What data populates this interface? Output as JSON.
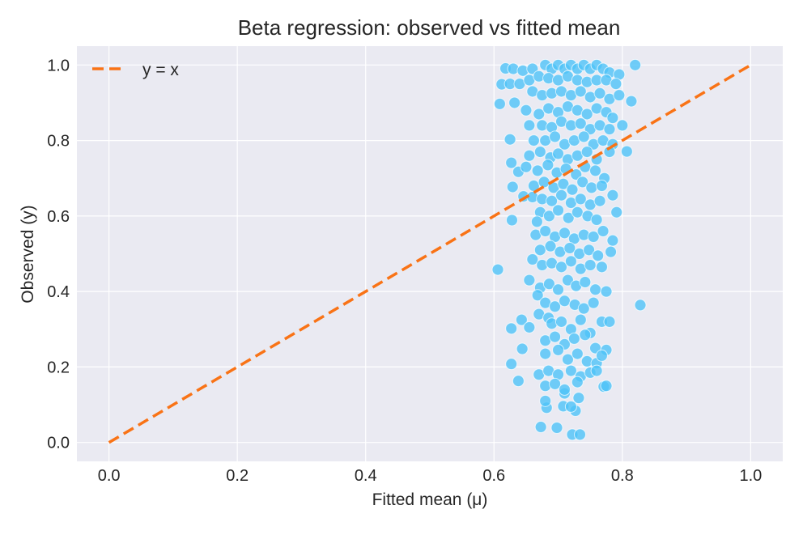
{
  "chart_data": {
    "type": "scatter",
    "title": "Beta regression: observed vs fitted mean",
    "xlabel": "Fitted mean (μ)",
    "ylabel": "Observed (y)",
    "xlim": [
      -0.05,
      1.05
    ],
    "ylim": [
      -0.05,
      1.05
    ],
    "xticks": [
      "0.0",
      "0.2",
      "0.4",
      "0.6",
      "0.8",
      "1.0"
    ],
    "yticks": [
      "0.0",
      "0.2",
      "0.4",
      "0.6",
      "0.8",
      "1.0"
    ],
    "grid": true,
    "legend_position": "top-left",
    "colors": {
      "points": "#4fc3f7",
      "reference_line": "#f97316",
      "plot_background": "#eaeaf2",
      "grid": "#ffffff"
    },
    "reference_line": {
      "name": "y = x",
      "x": [
        0,
        1
      ],
      "y": [
        0,
        1
      ],
      "style": "dashed"
    },
    "points": [
      [
        0.606,
        0.458
      ],
      [
        0.828,
        0.364
      ],
      [
        0.625,
        0.803
      ],
      [
        0.627,
        0.741
      ],
      [
        0.628,
        0.589
      ],
      [
        0.627,
        0.302
      ],
      [
        0.627,
        0.208
      ],
      [
        0.638,
        0.163
      ],
      [
        0.644,
        0.248
      ],
      [
        0.643,
        0.325
      ],
      [
        0.673,
        0.041
      ],
      [
        0.698,
        0.039
      ],
      [
        0.722,
        0.021
      ],
      [
        0.734,
        0.021
      ],
      [
        0.682,
        0.092
      ],
      [
        0.708,
        0.096
      ],
      [
        0.727,
        0.084
      ],
      [
        0.732,
        0.118
      ],
      [
        0.71,
        0.13
      ],
      [
        0.771,
        0.148
      ],
      [
        0.82,
        1.0
      ],
      [
        0.814,
        0.904
      ],
      [
        0.807,
        0.771
      ],
      [
        0.791,
        0.61
      ],
      [
        0.609,
        0.897
      ],
      [
        0.618,
        0.991
      ],
      [
        0.612,
        0.949
      ],
      [
        0.638,
        0.717
      ],
      [
        0.629,
        0.677
      ],
      [
        0.646,
        0.652
      ],
      [
        0.63,
        0.99
      ],
      [
        0.645,
        0.985
      ],
      [
        0.66,
        0.99
      ],
      [
        0.68,
        1.0
      ],
      [
        0.69,
        0.99
      ],
      [
        0.7,
        1.0
      ],
      [
        0.71,
        0.99
      ],
      [
        0.72,
        1.0
      ],
      [
        0.73,
        0.99
      ],
      [
        0.74,
        1.0
      ],
      [
        0.75,
        0.99
      ],
      [
        0.76,
        1.0
      ],
      [
        0.77,
        0.99
      ],
      [
        0.78,
        0.98
      ],
      [
        0.795,
        0.975
      ],
      [
        0.625,
        0.95
      ],
      [
        0.64,
        0.95
      ],
      [
        0.655,
        0.96
      ],
      [
        0.67,
        0.97
      ],
      [
        0.685,
        0.965
      ],
      [
        0.7,
        0.96
      ],
      [
        0.715,
        0.97
      ],
      [
        0.73,
        0.96
      ],
      [
        0.745,
        0.955
      ],
      [
        0.76,
        0.96
      ],
      [
        0.775,
        0.96
      ],
      [
        0.79,
        0.95
      ],
      [
        0.632,
        0.9
      ],
      [
        0.66,
        0.93
      ],
      [
        0.675,
        0.92
      ],
      [
        0.69,
        0.925
      ],
      [
        0.705,
        0.93
      ],
      [
        0.72,
        0.92
      ],
      [
        0.735,
        0.93
      ],
      [
        0.75,
        0.915
      ],
      [
        0.765,
        0.925
      ],
      [
        0.78,
        0.91
      ],
      [
        0.795,
        0.92
      ],
      [
        0.65,
        0.88
      ],
      [
        0.67,
        0.87
      ],
      [
        0.685,
        0.885
      ],
      [
        0.7,
        0.875
      ],
      [
        0.715,
        0.89
      ],
      [
        0.73,
        0.88
      ],
      [
        0.745,
        0.87
      ],
      [
        0.76,
        0.885
      ],
      [
        0.775,
        0.875
      ],
      [
        0.785,
        0.86
      ],
      [
        0.655,
        0.84
      ],
      [
        0.675,
        0.84
      ],
      [
        0.69,
        0.835
      ],
      [
        0.705,
        0.85
      ],
      [
        0.72,
        0.84
      ],
      [
        0.735,
        0.845
      ],
      [
        0.75,
        0.83
      ],
      [
        0.765,
        0.84
      ],
      [
        0.78,
        0.83
      ],
      [
        0.8,
        0.84
      ],
      [
        0.662,
        0.8
      ],
      [
        0.68,
        0.8
      ],
      [
        0.695,
        0.81
      ],
      [
        0.71,
        0.79
      ],
      [
        0.725,
        0.8
      ],
      [
        0.74,
        0.81
      ],
      [
        0.755,
        0.79
      ],
      [
        0.77,
        0.8
      ],
      [
        0.785,
        0.79
      ],
      [
        0.655,
        0.76
      ],
      [
        0.672,
        0.77
      ],
      [
        0.688,
        0.755
      ],
      [
        0.7,
        0.765
      ],
      [
        0.715,
        0.75
      ],
      [
        0.73,
        0.76
      ],
      [
        0.745,
        0.77
      ],
      [
        0.76,
        0.75
      ],
      [
        0.78,
        0.77
      ],
      [
        0.65,
        0.73
      ],
      [
        0.668,
        0.72
      ],
      [
        0.684,
        0.735
      ],
      [
        0.698,
        0.715
      ],
      [
        0.712,
        0.725
      ],
      [
        0.728,
        0.71
      ],
      [
        0.742,
        0.73
      ],
      [
        0.758,
        0.72
      ],
      [
        0.772,
        0.7
      ],
      [
        0.662,
        0.68
      ],
      [
        0.678,
        0.69
      ],
      [
        0.693,
        0.675
      ],
      [
        0.708,
        0.685
      ],
      [
        0.722,
        0.67
      ],
      [
        0.738,
        0.69
      ],
      [
        0.752,
        0.675
      ],
      [
        0.768,
        0.68
      ],
      [
        0.785,
        0.655
      ],
      [
        0.66,
        0.65
      ],
      [
        0.675,
        0.645
      ],
      [
        0.69,
        0.64
      ],
      [
        0.705,
        0.655
      ],
      [
        0.72,
        0.635
      ],
      [
        0.735,
        0.645
      ],
      [
        0.75,
        0.63
      ],
      [
        0.765,
        0.64
      ],
      [
        0.672,
        0.61
      ],
      [
        0.686,
        0.6
      ],
      [
        0.7,
        0.615
      ],
      [
        0.716,
        0.595
      ],
      [
        0.73,
        0.61
      ],
      [
        0.746,
        0.6
      ],
      [
        0.76,
        0.59
      ],
      [
        0.667,
        0.585
      ],
      [
        0.665,
        0.55
      ],
      [
        0.68,
        0.56
      ],
      [
        0.695,
        0.545
      ],
      [
        0.71,
        0.555
      ],
      [
        0.725,
        0.54
      ],
      [
        0.74,
        0.55
      ],
      [
        0.755,
        0.545
      ],
      [
        0.77,
        0.56
      ],
      [
        0.785,
        0.535
      ],
      [
        0.672,
        0.51
      ],
      [
        0.688,
        0.52
      ],
      [
        0.703,
        0.505
      ],
      [
        0.718,
        0.515
      ],
      [
        0.733,
        0.5
      ],
      [
        0.748,
        0.51
      ],
      [
        0.762,
        0.495
      ],
      [
        0.782,
        0.505
      ],
      [
        0.66,
        0.485
      ],
      [
        0.675,
        0.47
      ],
      [
        0.69,
        0.475
      ],
      [
        0.705,
        0.465
      ],
      [
        0.72,
        0.48
      ],
      [
        0.735,
        0.46
      ],
      [
        0.75,
        0.47
      ],
      [
        0.768,
        0.465
      ],
      [
        0.655,
        0.43
      ],
      [
        0.672,
        0.41
      ],
      [
        0.686,
        0.42
      ],
      [
        0.7,
        0.405
      ],
      [
        0.715,
        0.43
      ],
      [
        0.728,
        0.415
      ],
      [
        0.742,
        0.425
      ],
      [
        0.758,
        0.405
      ],
      [
        0.775,
        0.4
      ],
      [
        0.668,
        0.39
      ],
      [
        0.68,
        0.37
      ],
      [
        0.695,
        0.36
      ],
      [
        0.71,
        0.375
      ],
      [
        0.726,
        0.365
      ],
      [
        0.74,
        0.355
      ],
      [
        0.755,
        0.37
      ],
      [
        0.67,
        0.34
      ],
      [
        0.685,
        0.33
      ],
      [
        0.69,
        0.315
      ],
      [
        0.705,
        0.32
      ],
      [
        0.72,
        0.3
      ],
      [
        0.735,
        0.325
      ],
      [
        0.75,
        0.29
      ],
      [
        0.768,
        0.32
      ],
      [
        0.78,
        0.32
      ],
      [
        0.655,
        0.305
      ],
      [
        0.68,
        0.27
      ],
      [
        0.695,
        0.28
      ],
      [
        0.71,
        0.26
      ],
      [
        0.725,
        0.275
      ],
      [
        0.742,
        0.285
      ],
      [
        0.758,
        0.25
      ],
      [
        0.775,
        0.245
      ],
      [
        0.68,
        0.235
      ],
      [
        0.7,
        0.245
      ],
      [
        0.715,
        0.22
      ],
      [
        0.73,
        0.235
      ],
      [
        0.745,
        0.215
      ],
      [
        0.76,
        0.21
      ],
      [
        0.768,
        0.23
      ],
      [
        0.67,
        0.18
      ],
      [
        0.685,
        0.19
      ],
      [
        0.7,
        0.18
      ],
      [
        0.72,
        0.19
      ],
      [
        0.735,
        0.175
      ],
      [
        0.75,
        0.185
      ],
      [
        0.76,
        0.19
      ],
      [
        0.68,
        0.15
      ],
      [
        0.695,
        0.155
      ],
      [
        0.71,
        0.14
      ],
      [
        0.73,
        0.16
      ],
      [
        0.775,
        0.15
      ],
      [
        0.68,
        0.11
      ],
      [
        0.72,
        0.095
      ]
    ]
  }
}
